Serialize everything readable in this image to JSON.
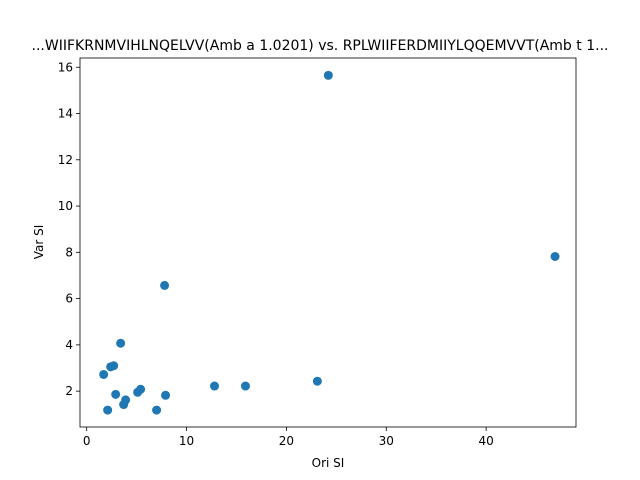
{
  "chart_data": {
    "type": "scatter",
    "title": "...WIIFKRNMVIHLNQELVV(Amb a 1.0201) vs. RPLWIIFERDMIIYLQQEMVVT(Amb t 1...",
    "xlabel": "Ori SI",
    "ylabel": "Var SI",
    "xlim": [
      -0.67,
      49.0
    ],
    "ylim": [
      0.45,
      16.4
    ],
    "xticks": [
      0,
      10,
      20,
      30,
      40
    ],
    "yticks": [
      2,
      4,
      6,
      8,
      10,
      12,
      14,
      16
    ],
    "grid": false,
    "legend": false,
    "marker_color": "#1f77b4",
    "points": [
      {
        "x": 1.7,
        "y": 2.72
      },
      {
        "x": 2.1,
        "y": 1.18
      },
      {
        "x": 2.4,
        "y": 3.05
      },
      {
        "x": 2.7,
        "y": 3.1
      },
      {
        "x": 2.9,
        "y": 1.86
      },
      {
        "x": 3.4,
        "y": 4.07
      },
      {
        "x": 3.7,
        "y": 1.42
      },
      {
        "x": 3.9,
        "y": 1.62
      },
      {
        "x": 5.1,
        "y": 1.95
      },
      {
        "x": 5.4,
        "y": 2.08
      },
      {
        "x": 7.0,
        "y": 1.18
      },
      {
        "x": 7.8,
        "y": 6.57
      },
      {
        "x": 7.9,
        "y": 1.82
      },
      {
        "x": 12.8,
        "y": 2.22
      },
      {
        "x": 15.9,
        "y": 2.22
      },
      {
        "x": 23.1,
        "y": 2.43
      },
      {
        "x": 24.2,
        "y": 15.65
      },
      {
        "x": 46.9,
        "y": 7.82
      }
    ]
  }
}
